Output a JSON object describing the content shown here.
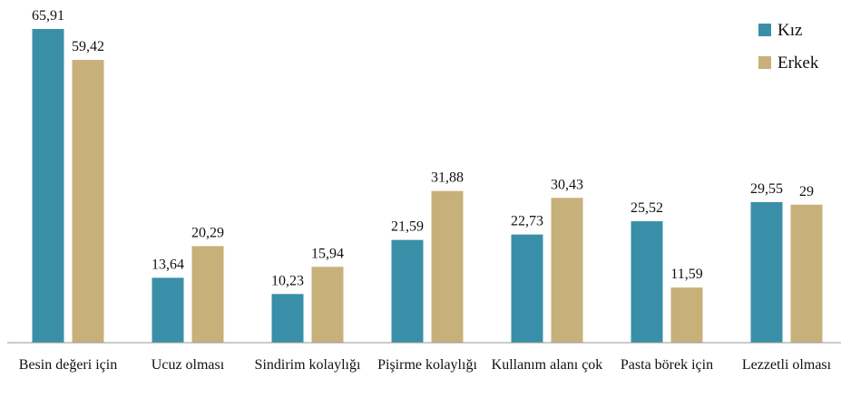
{
  "chart_data": {
    "type": "bar",
    "categories": [
      "Besin değeri için",
      "Ucuz olması",
      "Sindirim kolaylığı",
      "Pişirme kolaylığı",
      "Kullanım alanı çok",
      "Pasta börek için",
      "Lezzetli olması"
    ],
    "series": [
      {
        "name": "Kız",
        "color": "#3a8fa8",
        "values": [
          65.91,
          13.64,
          10.23,
          21.59,
          22.73,
          25.52,
          29.55
        ],
        "value_labels": [
          "65,91",
          "13,64",
          "10,23",
          "21,59",
          "22,73",
          "25,52",
          "29,55"
        ]
      },
      {
        "name": "Erkek",
        "color": "#c8b07a",
        "values": [
          59.42,
          20.29,
          15.94,
          31.88,
          30.43,
          11.59,
          29
        ],
        "value_labels": [
          "59,42",
          "20,29",
          "15,94",
          "31,88",
          "30,43",
          "11,59",
          "29"
        ]
      }
    ],
    "legend": "top-right"
  }
}
